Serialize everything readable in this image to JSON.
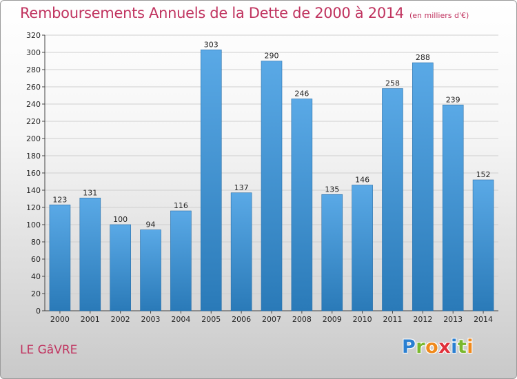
{
  "header": {
    "title": "Remboursements Annuels de la Dette de 2000 à 2014",
    "unit": "(en milliers d'€)"
  },
  "footer": {
    "city": "LE GâVRE",
    "logo_letters": [
      "P",
      "r",
      "o",
      "x",
      "i",
      "t",
      "i"
    ],
    "logo_colors": [
      "#2a7fd1",
      "#7ab82e",
      "#f08a1c",
      "#e0303a",
      "#2a7fd1",
      "#7ab82e",
      "#f08a1c"
    ]
  },
  "colors": {
    "title": "#c0335f",
    "bar_light": "#5aa9e6",
    "bar_dark": "#2a7ab8"
  },
  "chart_data": {
    "type": "bar",
    "title": "Remboursements Annuels de la Dette de 2000 à 2014",
    "xlabel": "",
    "ylabel": "",
    "categories": [
      "2000",
      "2001",
      "2002",
      "2003",
      "2004",
      "2005",
      "2006",
      "2007",
      "2008",
      "2009",
      "2010",
      "2011",
      "2012",
      "2013",
      "2014"
    ],
    "values": [
      123,
      131,
      100,
      94,
      116,
      303,
      137,
      290,
      246,
      135,
      146,
      258,
      288,
      239,
      152
    ],
    "ylim": [
      0,
      320
    ],
    "yticks": [
      0,
      20,
      40,
      60,
      80,
      100,
      120,
      140,
      160,
      180,
      200,
      220,
      240,
      260,
      280,
      300,
      320
    ],
    "grid": true,
    "data_labels": true
  }
}
